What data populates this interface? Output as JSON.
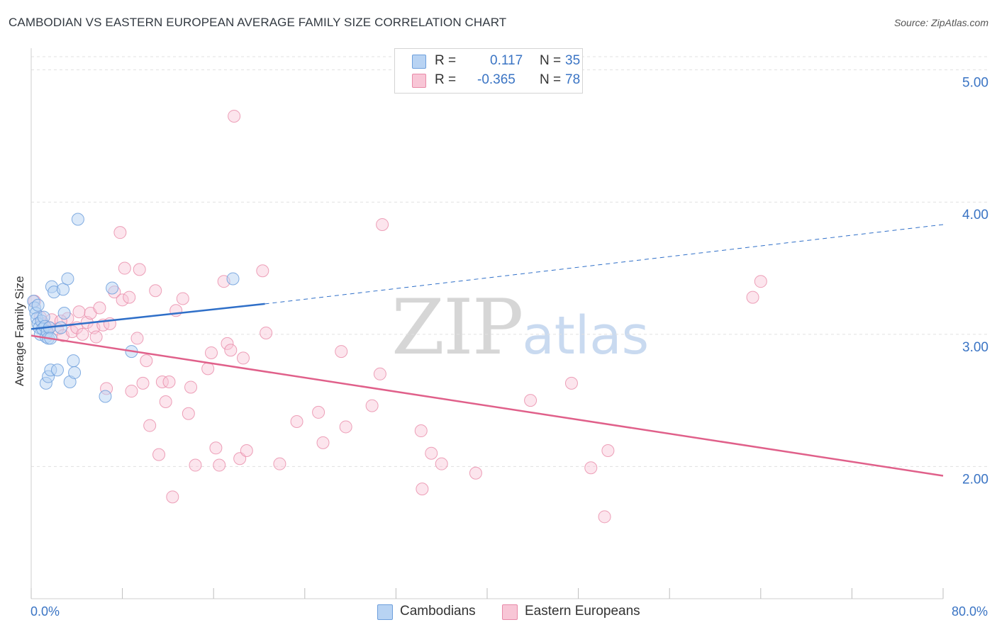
{
  "header": {
    "title": "CAMBODIAN VS EASTERN EUROPEAN AVERAGE FAMILY SIZE CORRELATION CHART",
    "source": "Source: ZipAtlas.com"
  },
  "watermark": {
    "zip": "ZIP",
    "atlas": "atlas"
  },
  "legend": {
    "rows": [
      {
        "r_label": "R =",
        "r_value": "0.117",
        "n_label": "N =",
        "n_value": "35"
      },
      {
        "r_label": "R =",
        "r_value": "-0.365",
        "n_label": "N =",
        "n_value": "78"
      }
    ]
  },
  "bottom_legend": {
    "items": [
      {
        "label": "Cambodians"
      },
      {
        "label": "Eastern Europeans"
      }
    ]
  },
  "colors": {
    "cambodians_fill": "#b8d3f3",
    "cambodians_stroke": "#6d9fdc",
    "cambodians_line": "#2f6fc8",
    "eastern_fill": "#f8c6d6",
    "eastern_stroke": "#e88aa8",
    "eastern_line": "#e0608a",
    "grid": "#e1e1e1",
    "tick_label": "#3a74c4"
  },
  "chart_data": {
    "type": "scatter",
    "title": "CAMBODIAN VS EASTERN EUROPEAN AVERAGE FAMILY SIZE CORRELATION CHART",
    "xlabel": "",
    "ylabel": "Average Family Size",
    "xlim": [
      0,
      80
    ],
    "ylim": [
      1.0,
      5.1
    ],
    "x_tick_labels": [
      "0.0%",
      "80.0%"
    ],
    "y_ticks": [
      2.0,
      3.0,
      4.0,
      5.0
    ],
    "y_tick_labels": [
      "2.00",
      "3.00",
      "4.00",
      "5.00"
    ],
    "grid": true,
    "legend_position": "top-center",
    "series": [
      {
        "name": "Cambodians",
        "r": 0.117,
        "n": 35,
        "trend": {
          "x": [
            0,
            20.5
          ],
          "y": [
            3.04,
            3.23
          ],
          "dashed_to": [
            80,
            3.83
          ]
        },
        "points": [
          [
            0.2,
            3.25
          ],
          [
            0.3,
            3.2
          ],
          [
            0.4,
            3.16
          ],
          [
            0.5,
            3.12
          ],
          [
            0.6,
            3.08
          ],
          [
            0.7,
            3.05
          ],
          [
            0.8,
            3.0
          ],
          [
            0.9,
            3.1
          ],
          [
            1.0,
            3.04
          ],
          [
            1.1,
            3.13
          ],
          [
            1.2,
            3.06
          ],
          [
            1.3,
            2.98
          ],
          [
            1.4,
            3.02
          ],
          [
            1.5,
            2.97
          ],
          [
            1.6,
            3.05
          ],
          [
            1.7,
            2.97
          ],
          [
            1.3,
            2.63
          ],
          [
            1.5,
            2.68
          ],
          [
            1.7,
            2.73
          ],
          [
            1.8,
            3.36
          ],
          [
            2.0,
            3.32
          ],
          [
            2.3,
            2.73
          ],
          [
            2.6,
            3.05
          ],
          [
            2.8,
            3.34
          ],
          [
            2.9,
            3.16
          ],
          [
            3.2,
            3.42
          ],
          [
            3.4,
            2.64
          ],
          [
            3.7,
            2.8
          ],
          [
            3.8,
            2.71
          ],
          [
            4.1,
            3.87
          ],
          [
            6.5,
            2.53
          ],
          [
            7.1,
            3.35
          ],
          [
            8.8,
            2.87
          ],
          [
            17.7,
            3.42
          ],
          [
            0.6,
            3.22
          ]
        ]
      },
      {
        "name": "Eastern Europeans",
        "r": -0.365,
        "n": 78,
        "trend": {
          "x": [
            0,
            80
          ],
          "y": [
            2.99,
            1.93
          ]
        },
        "points": [
          [
            0.3,
            3.25
          ],
          [
            0.8,
            3.13
          ],
          [
            1.0,
            3.08
          ],
          [
            1.3,
            3.05
          ],
          [
            1.8,
            3.11
          ],
          [
            2.3,
            3.04
          ],
          [
            2.8,
            2.99
          ],
          [
            3.2,
            3.12
          ],
          [
            3.6,
            3.02
          ],
          [
            4.0,
            3.05
          ],
          [
            4.2,
            3.17
          ],
          [
            4.5,
            3.0
          ],
          [
            4.9,
            3.09
          ],
          [
            5.2,
            3.16
          ],
          [
            5.5,
            3.05
          ],
          [
            5.7,
            2.98
          ],
          [
            6.0,
            3.2
          ],
          [
            6.3,
            3.07
          ],
          [
            6.6,
            2.59
          ],
          [
            6.9,
            3.08
          ],
          [
            7.3,
            3.32
          ],
          [
            7.8,
            3.77
          ],
          [
            8.0,
            3.26
          ],
          [
            8.2,
            3.5
          ],
          [
            8.6,
            3.28
          ],
          [
            8.8,
            2.57
          ],
          [
            9.3,
            2.97
          ],
          [
            9.5,
            3.49
          ],
          [
            9.8,
            2.63
          ],
          [
            10.1,
            2.8
          ],
          [
            10.4,
            2.31
          ],
          [
            10.9,
            3.33
          ],
          [
            11.2,
            2.09
          ],
          [
            11.5,
            2.64
          ],
          [
            11.8,
            2.49
          ],
          [
            12.1,
            2.64
          ],
          [
            12.4,
            1.77
          ],
          [
            12.7,
            3.18
          ],
          [
            13.3,
            3.27
          ],
          [
            13.8,
            2.4
          ],
          [
            14.0,
            2.6
          ],
          [
            14.4,
            2.01
          ],
          [
            15.5,
            2.74
          ],
          [
            15.8,
            2.86
          ],
          [
            16.2,
            2.14
          ],
          [
            16.5,
            2.01
          ],
          [
            16.9,
            3.4
          ],
          [
            17.2,
            2.93
          ],
          [
            17.5,
            2.88
          ],
          [
            17.8,
            4.65
          ],
          [
            18.3,
            2.06
          ],
          [
            18.6,
            2.82
          ],
          [
            18.9,
            2.12
          ],
          [
            20.3,
            3.48
          ],
          [
            20.6,
            3.01
          ],
          [
            21.8,
            2.02
          ],
          [
            23.3,
            2.34
          ],
          [
            25.2,
            2.41
          ],
          [
            25.6,
            2.18
          ],
          [
            27.2,
            2.87
          ],
          [
            27.6,
            2.3
          ],
          [
            29.9,
            2.46
          ],
          [
            30.6,
            2.7
          ],
          [
            30.8,
            3.83
          ],
          [
            34.2,
            2.27
          ],
          [
            34.3,
            1.83
          ],
          [
            35.1,
            2.1
          ],
          [
            36.0,
            2.02
          ],
          [
            39.0,
            1.95
          ],
          [
            43.8,
            2.5
          ],
          [
            47.4,
            2.63
          ],
          [
            49.1,
            1.99
          ],
          [
            50.3,
            1.62
          ],
          [
            50.6,
            2.12
          ],
          [
            63.3,
            3.28
          ],
          [
            64.0,
            3.4
          ],
          [
            1.6,
            3.05
          ],
          [
            2.6,
            3.1
          ]
        ]
      }
    ]
  }
}
